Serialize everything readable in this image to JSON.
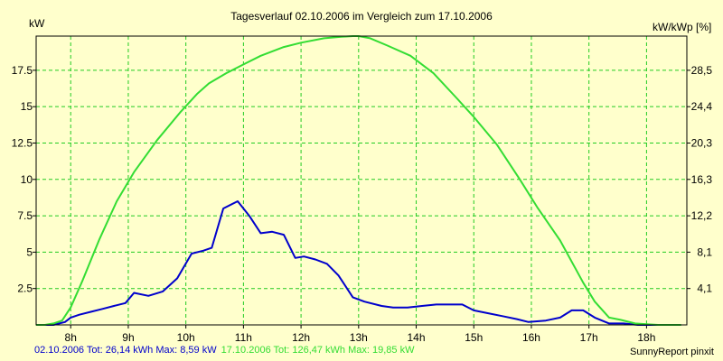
{
  "chart_data": {
    "type": "line",
    "title": "Tagesverlauf 02.10.2006 im Vergleich zum 17.10.2006",
    "ylabel_left": "kW",
    "ylabel_right": "kW/kWp [%]",
    "xlim": [
      7.4,
      18.7
    ],
    "ylim": [
      0,
      19.85
    ],
    "x_ticks": [
      8,
      9,
      10,
      11,
      12,
      13,
      14,
      15,
      16,
      17,
      18
    ],
    "x_tick_labels": [
      "8h",
      "9h",
      "10h",
      "11h",
      "12h",
      "13h",
      "14h",
      "15h",
      "16h",
      "17h",
      "18h"
    ],
    "y_ticks": [
      2.5,
      5,
      7.5,
      10,
      12.5,
      15,
      17.5
    ],
    "y_tick_labels": [
      "2.5",
      "5",
      "7.5",
      "10",
      "12.5",
      "15",
      "17.5"
    ],
    "y2_tick_labels": [
      "4,1",
      "8,1",
      "12,2",
      "16,3",
      "20,3",
      "24,4",
      "28,5"
    ],
    "grid": true,
    "series": [
      {
        "name": "02.10.2006",
        "color": "#0000cc",
        "x": [
          7.4,
          7.7,
          7.9,
          8.0,
          8.15,
          8.35,
          8.55,
          8.75,
          8.95,
          9.1,
          9.35,
          9.6,
          9.85,
          10.1,
          10.3,
          10.45,
          10.65,
          10.9,
          11.1,
          11.3,
          11.5,
          11.7,
          11.9,
          12.05,
          12.25,
          12.45,
          12.65,
          12.9,
          13.1,
          13.4,
          13.6,
          13.85,
          14.1,
          14.35,
          14.55,
          14.8,
          15.0,
          15.25,
          15.5,
          15.75,
          15.95,
          16.25,
          16.5,
          16.7,
          16.9,
          17.1,
          17.35,
          17.6,
          17.85,
          18.1,
          18.35,
          18.6
        ],
        "values": [
          0,
          0,
          0.2,
          0.5,
          0.7,
          0.9,
          1.1,
          1.3,
          1.5,
          2.2,
          2.0,
          2.3,
          3.2,
          4.9,
          5.1,
          5.3,
          8.0,
          8.5,
          7.5,
          6.3,
          6.4,
          6.2,
          4.6,
          4.7,
          4.5,
          4.2,
          3.4,
          1.9,
          1.6,
          1.3,
          1.2,
          1.2,
          1.3,
          1.4,
          1.4,
          1.4,
          1.0,
          0.8,
          0.6,
          0.4,
          0.2,
          0.3,
          0.5,
          1.0,
          1.0,
          0.5,
          0.1,
          0.1,
          0,
          0,
          0,
          0
        ]
      },
      {
        "name": "17.10.2006",
        "color": "#33dd33",
        "x": [
          7.4,
          7.55,
          7.7,
          7.85,
          8.0,
          8.2,
          8.5,
          8.8,
          9.1,
          9.5,
          9.9,
          10.2,
          10.4,
          10.7,
          11.0,
          11.3,
          11.7,
          12.0,
          12.4,
          12.7,
          12.9,
          13.0,
          13.2,
          13.5,
          13.9,
          14.3,
          14.7,
          15.0,
          15.4,
          15.8,
          16.1,
          16.5,
          16.9,
          17.1,
          17.35,
          17.55,
          17.8,
          18.0,
          18.2,
          18.4,
          18.6
        ],
        "values": [
          0,
          0,
          0.1,
          0.3,
          1.2,
          3.0,
          5.9,
          8.5,
          10.5,
          12.7,
          14.6,
          15.9,
          16.6,
          17.3,
          17.9,
          18.5,
          19.1,
          19.4,
          19.7,
          19.8,
          19.85,
          19.85,
          19.7,
          19.2,
          18.5,
          17.3,
          15.6,
          14.3,
          12.4,
          10.0,
          8.1,
          5.8,
          2.9,
          1.6,
          0.5,
          0.35,
          0.1,
          0.05,
          0,
          0,
          0
        ]
      }
    ],
    "legend_items": [
      {
        "label": "02.10.2006 Tot: 26,14 kWh Max: 8,59 kW",
        "color": "#0000cc"
      },
      {
        "label": "17.10.2006 Tot: 126,47 kWh Max: 19,85 kW",
        "color": "#33dd33"
      }
    ],
    "credit": "SunnyReport pinxit"
  },
  "colors": {
    "background": "#ffffcc",
    "grid": "#22cc22",
    "axis": "#000000"
  }
}
